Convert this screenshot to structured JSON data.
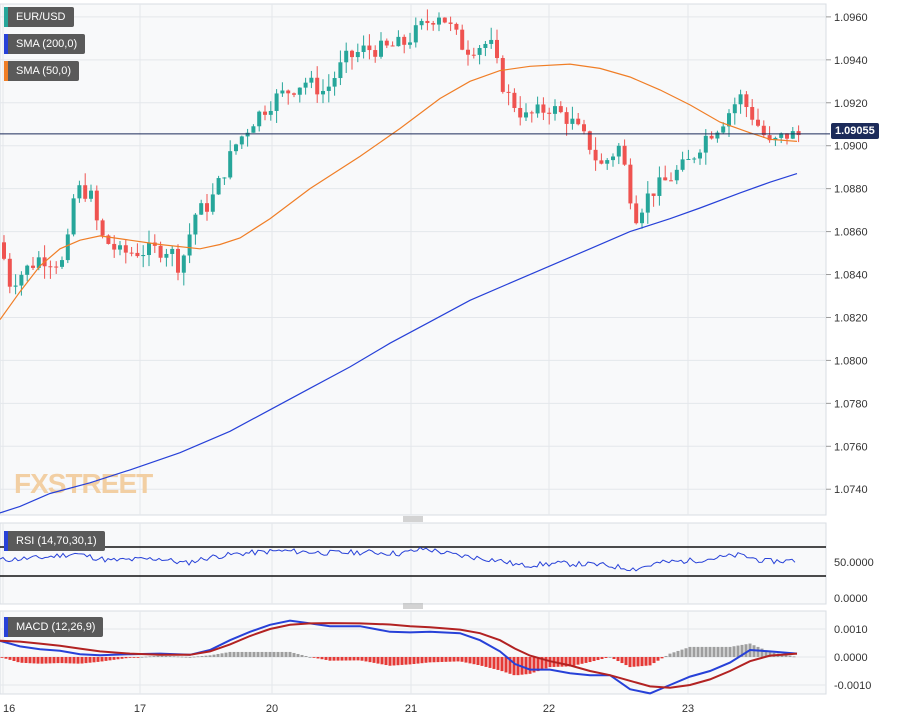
{
  "watermark": "FXSTREET",
  "current_price_label": "1.09055",
  "colors": {
    "bull": "#26a69a",
    "bear": "#ef5350",
    "sma200": "#2741d8",
    "sma50": "#f07e26",
    "price_line": "#1c2b5a",
    "rsi": "#2741d8",
    "macd": "#2741d8",
    "signal": "#b22222",
    "hist_pos": "#9e9e9e",
    "hist_neg": "#e53935"
  },
  "legends": {
    "symbol": "EUR/USD",
    "sma200": "SMA (200,0)",
    "sma50": "SMA (50,0)",
    "rsi": "RSI (14,70,30,1)",
    "macd": "MACD (12,26,9)"
  },
  "chart_data": [
    {
      "type": "candlestick",
      "title": "EUR/USD",
      "x_tick_labels": [
        "16",
        "17",
        "20",
        "21",
        "22",
        "23"
      ],
      "y_ticks": [
        "1.0960",
        "1.0940",
        "1.0920",
        "1.0900",
        "1.0880",
        "1.0860",
        "1.0840",
        "1.0820",
        "1.0800",
        "1.0780",
        "1.0760",
        "1.0740"
      ],
      "ylim": [
        1.0728,
        1.0966
      ],
      "grid": true,
      "current_price": 1.09055,
      "series": [
        {
          "name": "SMA (200,0)",
          "type": "line",
          "points": [
            [
              0,
              1.0729
            ],
            [
              20,
              1.0732
            ],
            [
              50,
              1.0738
            ],
            [
              90,
              1.0743
            ],
            [
              130,
              1.0749
            ],
            [
              180,
              1.0757
            ],
            [
              230,
              1.0767
            ],
            [
              270,
              1.0777
            ],
            [
              310,
              1.0787
            ],
            [
              350,
              1.0797
            ],
            [
              390,
              1.0808
            ],
            [
              430,
              1.0818
            ],
            [
              470,
              1.0828
            ],
            [
              510,
              1.0836
            ],
            [
              550,
              1.0844
            ],
            [
              590,
              1.0852
            ],
            [
              630,
              1.086
            ],
            [
              670,
              1.0866
            ],
            [
              700,
              1.0871
            ],
            [
              740,
              1.0878
            ],
            [
              770,
              1.0883
            ],
            [
              797,
              1.0887
            ]
          ]
        },
        {
          "name": "SMA (50,0)",
          "type": "line",
          "points": [
            [
              0,
              1.0819
            ],
            [
              20,
              1.0832
            ],
            [
              40,
              1.0844
            ],
            [
              60,
              1.0852
            ],
            [
              80,
              1.0856
            ],
            [
              100,
              1.0858
            ],
            [
              130,
              1.0856
            ],
            [
              160,
              1.0854
            ],
            [
              200,
              1.0852
            ],
            [
              220,
              1.0854
            ],
            [
              240,
              1.0857
            ],
            [
              270,
              1.0866
            ],
            [
              310,
              1.088
            ],
            [
              360,
              1.0895
            ],
            [
              400,
              1.0908
            ],
            [
              440,
              1.0922
            ],
            [
              470,
              1.093
            ],
            [
              500,
              1.0935
            ],
            [
              530,
              1.0937
            ],
            [
              570,
              1.0938
            ],
            [
              600,
              1.0936
            ],
            [
              630,
              1.0932
            ],
            [
              660,
              1.0926
            ],
            [
              690,
              1.0919
            ],
            [
              720,
              1.0911
            ],
            [
              750,
              1.0906
            ],
            [
              770,
              1.0903
            ],
            [
              797,
              1.0902
            ]
          ]
        }
      ]
    },
    {
      "type": "line",
      "title": "RSI (14,70,30,1)",
      "y_ticks": [
        "50.0000",
        "0.0000"
      ],
      "upper_band": 70,
      "lower_band": 30
    },
    {
      "type": "line",
      "title": "MACD (12,26,9)",
      "y_ticks": [
        "0.0010",
        "0.0000",
        "-0.0010"
      ],
      "series": [
        {
          "name": "MACD",
          "points": [
            [
              0,
              0.00058
            ],
            [
              20,
              0.00038
            ],
            [
              40,
              0.00028
            ],
            [
              60,
              0.00022
            ],
            [
              80,
              0.0001
            ],
            [
              100,
              6e-05
            ],
            [
              130,
              0.0001
            ],
            [
              160,
              0.00012
            ],
            [
              190,
              8e-05
            ],
            [
              210,
              0.00025
            ],
            [
              230,
              0.0006
            ],
            [
              250,
              0.0009
            ],
            [
              270,
              0.00115
            ],
            [
              290,
              0.0013
            ],
            [
              310,
              0.0012
            ],
            [
              330,
              0.0011
            ],
            [
              360,
              0.0011
            ],
            [
              390,
              0.0009
            ],
            [
              410,
              0.00088
            ],
            [
              430,
              0.0009
            ],
            [
              460,
              0.00085
            ],
            [
              480,
              0.0006
            ],
            [
              500,
              0.0002
            ],
            [
              515,
              -0.00025
            ],
            [
              530,
              -0.00045
            ],
            [
              550,
              -0.00045
            ],
            [
              570,
              -0.00058
            ],
            [
              590,
              -0.00065
            ],
            [
              610,
              -0.00065
            ],
            [
              630,
              -0.00115
            ],
            [
              650,
              -0.0013
            ],
            [
              670,
              -0.001
            ],
            [
              690,
              -0.0007
            ],
            [
              710,
              -0.0005
            ],
            [
              730,
              -0.0002
            ],
            [
              750,
              0.00025
            ],
            [
              770,
              0.0002
            ],
            [
              797,
              0.00012
            ]
          ]
        },
        {
          "name": "Signal",
          "points": [
            [
              0,
              0.00058
            ],
            [
              20,
              0.00055
            ],
            [
              40,
              0.00048
            ],
            [
              60,
              0.0004
            ],
            [
              80,
              0.0003
            ],
            [
              100,
              0.0002
            ],
            [
              130,
              0.00012
            ],
            [
              160,
              8e-05
            ],
            [
              190,
              8e-05
            ],
            [
              210,
              0.0002
            ],
            [
              230,
              0.00045
            ],
            [
              250,
              0.00075
            ],
            [
              270,
              0.001
            ],
            [
              290,
              0.00115
            ],
            [
              310,
              0.0012
            ],
            [
              330,
              0.00121
            ],
            [
              360,
              0.0012
            ],
            [
              390,
              0.00116
            ],
            [
              410,
              0.0011
            ],
            [
              430,
              0.00106
            ],
            [
              460,
              0.00098
            ],
            [
              480,
              0.00085
            ],
            [
              500,
              0.0006
            ],
            [
              515,
              0.0003
            ],
            [
              530,
              5e-05
            ],
            [
              550,
              -0.00015
            ],
            [
              570,
              -0.0003
            ],
            [
              590,
              -0.0005
            ],
            [
              610,
              -0.00065
            ],
            [
              630,
              -0.00085
            ],
            [
              650,
              -0.00105
            ],
            [
              670,
              -0.0011
            ],
            [
              690,
              -0.001
            ],
            [
              710,
              -0.0008
            ],
            [
              730,
              -0.0005
            ],
            [
              750,
              -0.00015
            ],
            [
              770,
              5e-05
            ],
            [
              797,
              0.00012
            ]
          ]
        }
      ]
    }
  ]
}
